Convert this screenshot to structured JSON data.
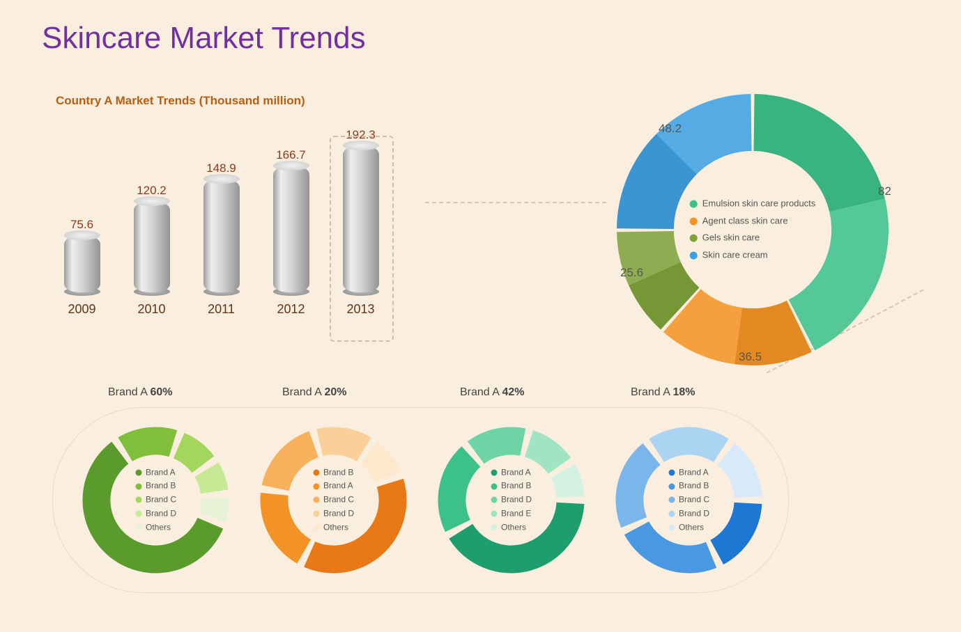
{
  "title": "Skincare Market Trends",
  "bg_color": "#faefdf",
  "title_color": "#7030a0",
  "title_fontsize": 44,
  "bar_chart": {
    "title": "Country A Market Trends (Thousand million)",
    "title_color": "#b95d0f",
    "value_color": "#8a3a1a",
    "year_color": "#5e3518",
    "years": [
      "2009",
      "2010",
      "2011",
      "2012",
      "2013"
    ],
    "values": [
      75.6,
      120.2,
      148.9,
      166.7,
      192.3
    ],
    "max_value": 200,
    "bar_fill_gradient": [
      "#9d9d9d",
      "#efefef",
      "#cfcfcf",
      "#939393"
    ],
    "highlight_last": true,
    "dash_color": "#cbbfad"
  },
  "main_donut": {
    "type": "donut",
    "inner_radius_ratio": 0.58,
    "background": "#faefdf",
    "gap_deg": 1.5,
    "segments": [
      {
        "label": "Emulsion skin care products",
        "value": 82,
        "color": "#3dc18a"
      },
      {
        "label": "Agent class skin care",
        "value": 36.5,
        "color": "#f39325"
      },
      {
        "label": "Gels skin care",
        "value": 25.6,
        "color": "#7fa23a"
      },
      {
        "label": "Skin care cream",
        "value": 48.2,
        "color": "#3ea0e0"
      }
    ],
    "value_labels": [
      "82",
      "36.5",
      "25.6",
      "48.2"
    ],
    "legend_text_color": "#555",
    "label_fontsize": 17
  },
  "brand_donuts": [
    {
      "title_prefix": "Brand A ",
      "title_value": "60%",
      "palette": [
        "#5b9b2d",
        "#7fbf3b",
        "#a4d65e",
        "#c7e894",
        "#e8f3d5"
      ],
      "legend": [
        "Brand A",
        "Brand B",
        "Brand C",
        "Brand D",
        "Others"
      ],
      "values": [
        60,
        15,
        10,
        8,
        7
      ]
    },
    {
      "title_prefix": "Brand A ",
      "title_value": "20%",
      "palette": [
        "#e97817",
        "#f39325",
        "#f7b05c",
        "#fbcf99",
        "#fde8cc"
      ],
      "legend": [
        "Brand B",
        "Brand A",
        "Brand C",
        "Brand D",
        "Others"
      ],
      "values": [
        38,
        20,
        18,
        14,
        10
      ]
    },
    {
      "title_prefix": "Brand A ",
      "title_value": "42%",
      "palette": [
        "#1e9e6e",
        "#3dc18a",
        "#6dd4a6",
        "#a0e4c4",
        "#d3f2e3"
      ],
      "legend": [
        "Brand A",
        "Brand B",
        "Brand D",
        "Brand E",
        "Others"
      ],
      "values": [
        42,
        22,
        15,
        12,
        9
      ]
    },
    {
      "title_prefix": "Brand A ",
      "title_value": "18%",
      "palette": [
        "#1f77d4",
        "#4a98e1",
        "#7ab6ea",
        "#abd3f2",
        "#d8eafa"
      ],
      "legend": [
        "Brand A",
        "Brand B",
        "Brand C",
        "Brand D",
        "Others"
      ],
      "values": [
        18,
        25,
        22,
        20,
        15
      ]
    }
  ],
  "brand_row": {
    "border_color": "#e9d9c4",
    "gap_deg": 6,
    "inner_radius_ratio": 0.62
  }
}
